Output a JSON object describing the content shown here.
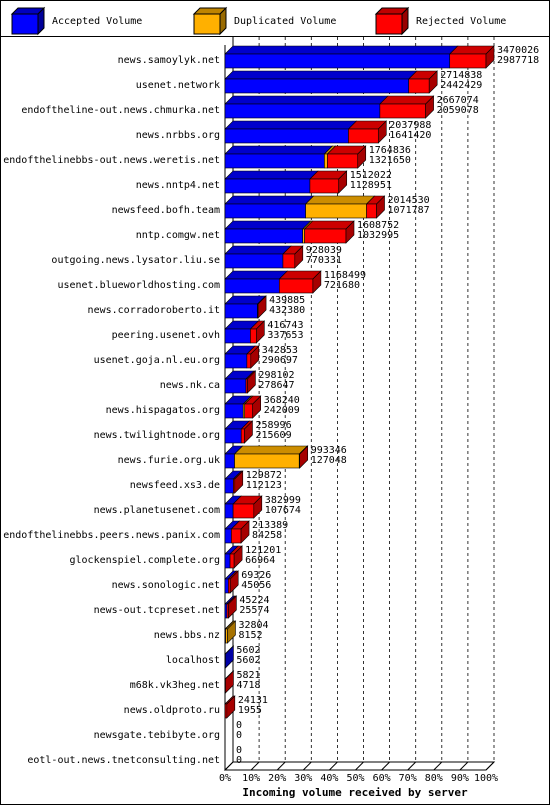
{
  "chart_data": {
    "type": "bar3d-stacked-horizontal",
    "x_label": "Incoming volume received by server",
    "categories": [
      "news.samoylyk.net",
      "usenet.network",
      "endoftheline-out.news.chmurka.net",
      "news.nrbbs.org",
      "endofthelinebbs-out.news.weretis.net",
      "news.nntp4.net",
      "newsfeed.bofh.team",
      "nntp.comgw.net",
      "outgoing.news.lysator.liu.se",
      "usenet.blueworldhosting.com",
      "news.corradoroberto.it",
      "peering.usenet.ovh",
      "usenet.goja.nl.eu.org",
      "news.nk.ca",
      "news.hispagatos.org",
      "news.twilightnode.org",
      "news.furie.org.uk",
      "newsfeed.xs3.de",
      "news.planetusenet.com",
      "endofthelinebbs.peers.news.panix.com",
      "glockenspiel.complete.org",
      "news.sonologic.net",
      "news-out.tcpreset.net",
      "news.bbs.nz",
      "localhost",
      "m68k.vk3heg.net",
      "news.oldproto.ru",
      "newsgate.tebibyte.org",
      "eotl-out.news.tnetconsulting.net"
    ],
    "totals": [
      3470026,
      2714838,
      2667074,
      2037988,
      1764836,
      1512022,
      2014530,
      1608752,
      928039,
      1168499,
      439885,
      416743,
      342853,
      298102,
      368240,
      258996,
      993346,
      129872,
      382999,
      213389,
      121201,
      69326,
      45224,
      32804,
      5602,
      5821,
      24131,
      0,
      0
    ],
    "series": [
      {
        "name": "Accepted Volume",
        "color": "#0000ff",
        "values": [
          2987718,
          2442429,
          2059078,
          1641420,
          1321650,
          1128951,
          1071787,
          1032995,
          770331,
          721680,
          432380,
          337653,
          290697,
          278647,
          242009,
          215609,
          127048,
          112123,
          107674,
          84258,
          66964,
          45056,
          25574,
          8152,
          5602,
          4718,
          1955,
          0,
          0
        ]
      },
      {
        "name": "Duplicated Volume",
        "color": "#ffb000",
        "values": [
          0,
          0,
          0,
          0,
          40000,
          0,
          810000,
          25000,
          0,
          0,
          0,
          0,
          0,
          0,
          20000,
          0,
          860000,
          0,
          0,
          0,
          0,
          0,
          0,
          24652,
          0,
          0,
          0,
          0,
          0
        ]
      },
      {
        "name": "Rejected Volume",
        "color": "#ff0000",
        "values": [
          482308,
          272409,
          607996,
          396568,
          403186,
          383071,
          132743,
          550757,
          157708,
          446819,
          7505,
          79090,
          52156,
          19455,
          106231,
          43387,
          6298,
          17749,
          275325,
          129131,
          54237,
          24270,
          19650,
          0,
          0,
          1103,
          22176,
          0,
          0
        ]
      }
    ],
    "xlim": [
      0,
      3470026
    ],
    "xticks": [
      {
        "value": 0,
        "label": "0%"
      },
      {
        "value": 347002.6,
        "label": "10%"
      },
      {
        "value": 694005.2,
        "label": "20%"
      },
      {
        "value": 1041007.8,
        "label": "30%"
      },
      {
        "value": 1388010.4,
        "label": "40%"
      },
      {
        "value": 1735013,
        "label": "50%"
      },
      {
        "value": 2082015.6,
        "label": "60%"
      },
      {
        "value": 2429018.2,
        "label": "70%"
      },
      {
        "value": 2776020.8,
        "label": "80%"
      },
      {
        "value": 3123023.4,
        "label": "90%"
      },
      {
        "value": 3470026,
        "label": "100%"
      }
    ],
    "grid": true
  }
}
